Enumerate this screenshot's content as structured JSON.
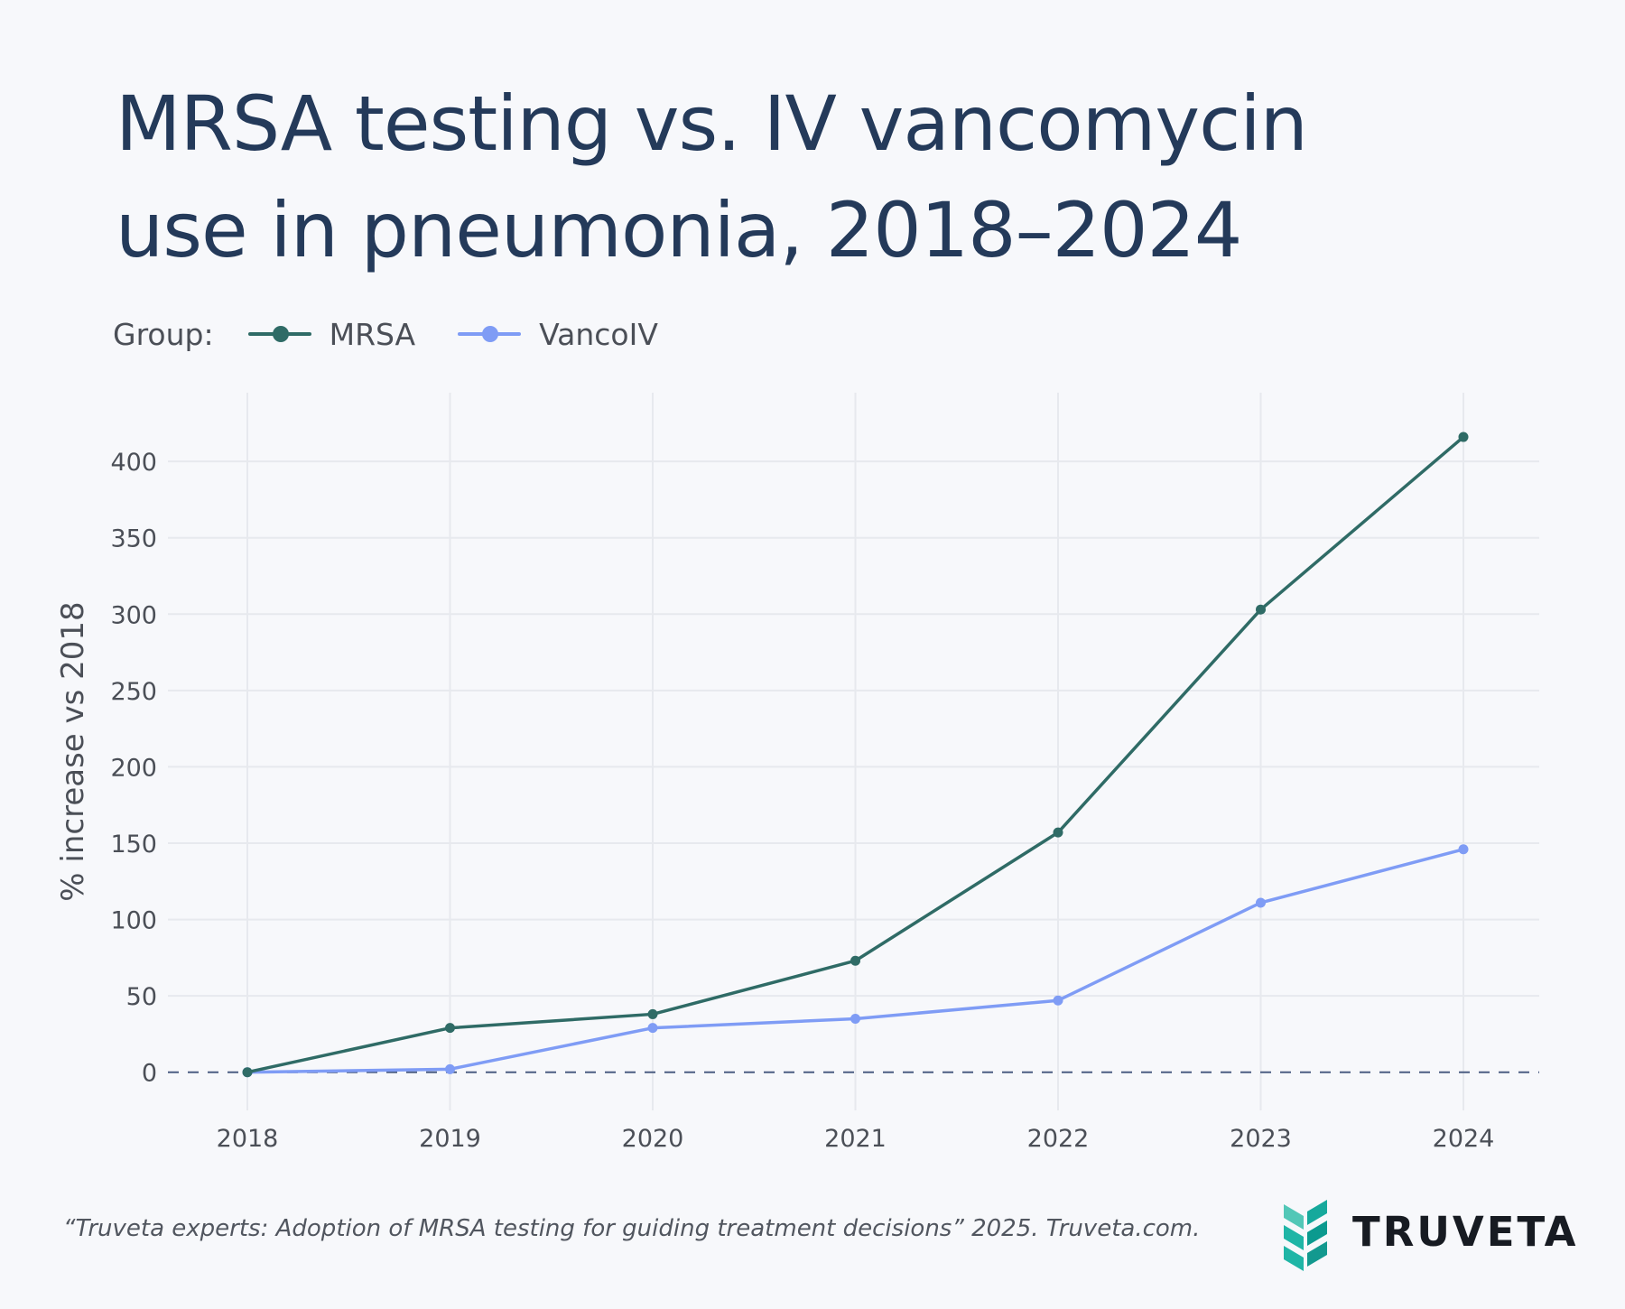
{
  "title": {
    "line1": "MRSA testing vs. IV vancomycin",
    "line2": "use in pneumonia, 2018–2024"
  },
  "legend": {
    "label": "Group:"
  },
  "colors": {
    "background": "#f7f8fb",
    "title": "#243a5a",
    "text": "#4b4f57",
    "grid": "#e7e9ee",
    "zero_line": "#4b5d82",
    "brand_teal": "#1fb5a6"
  },
  "chart_data": {
    "type": "line",
    "x": [
      2018,
      2019,
      2020,
      2021,
      2022,
      2023,
      2024
    ],
    "series": [
      {
        "name": "MRSA",
        "color": "#2f6b66",
        "values": [
          0,
          29,
          38,
          73,
          157,
          303,
          416
        ]
      },
      {
        "name": "VancoIV",
        "color": "#7f9cf5",
        "values": [
          0,
          2,
          29,
          35,
          47,
          111,
          146
        ]
      }
    ],
    "title": "MRSA testing vs. IV vancomycin use in pneumonia, 2018–2024",
    "xlabel": "",
    "ylabel": "% increase vs 2018",
    "ylim": [
      -25,
      445
    ],
    "y_ticks": [
      0,
      50,
      100,
      150,
      200,
      250,
      300,
      350,
      400
    ],
    "x_ticks": [
      "2018",
      "2019",
      "2020",
      "2021",
      "2022",
      "2023",
      "2024"
    ],
    "grid": true,
    "zero_line": "dashed",
    "legend_placement": "top-left"
  },
  "footer": {
    "citation": "“Truveta experts: Adoption of MRSA testing for guiding treatment decisions” 2025. Truveta.com."
  },
  "brand": {
    "name": "TRUVETA"
  }
}
